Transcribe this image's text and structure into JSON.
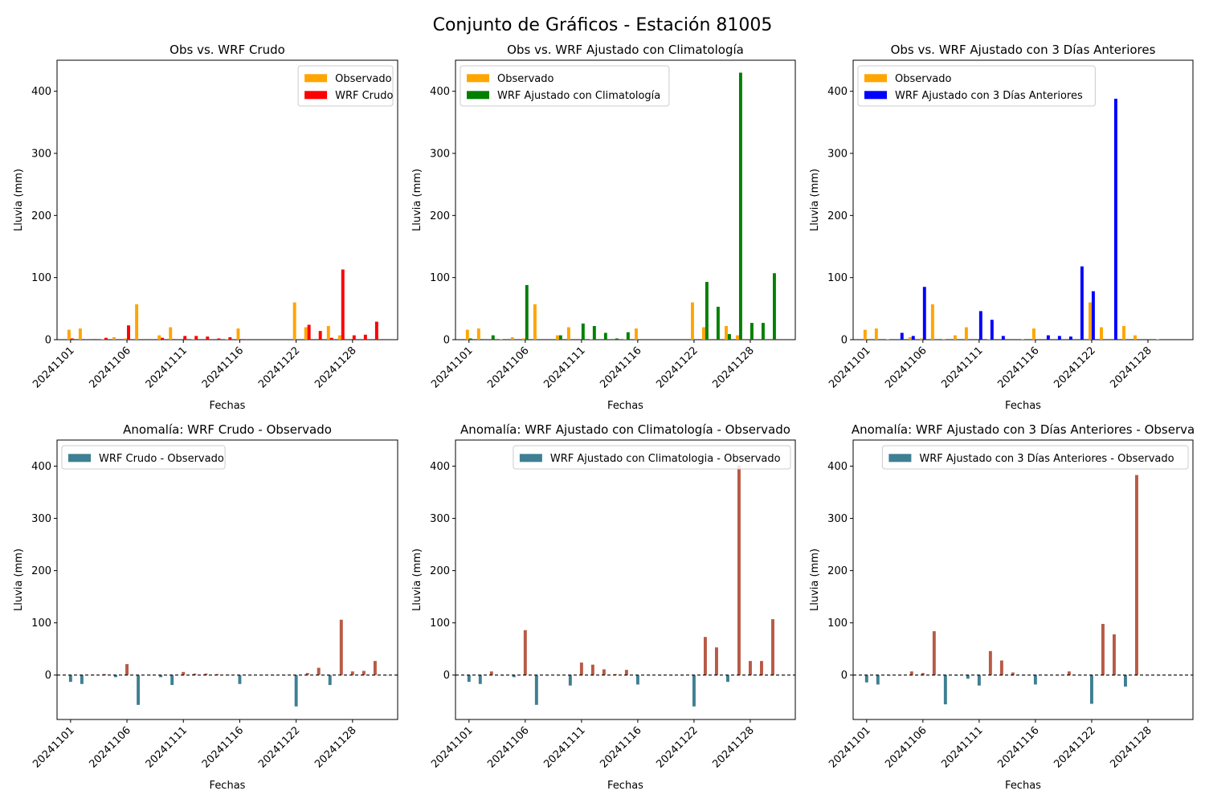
{
  "figure": {
    "suptitle": "Conjunto de Gráficos - Estación 81005"
  },
  "colors": {
    "observed": "#ffa500",
    "wrf_crudo": "#ff0000",
    "wrf_clim": "#008000",
    "wrf_3dias": "#0000ff",
    "anomaly_negative": "#3f7f93",
    "anomaly_positive": "#b85a45",
    "zero_line": "#000000"
  },
  "chart_data": [
    {
      "type": "bar",
      "title": "Obs vs. WRF Crudo",
      "xlabel": "Fechas",
      "ylabel": "Lluvia (mm)",
      "ylim": [
        0,
        450
      ],
      "yticks": [
        0,
        100,
        200,
        300,
        400
      ],
      "x_range": [
        0,
        29
      ],
      "legend_position": "top-right",
      "xtick_labels": [
        {
          "label": "20241101",
          "x": 1
        },
        {
          "label": "20241106",
          "x": 6
        },
        {
          "label": "20241111",
          "x": 11
        },
        {
          "label": "20241116",
          "x": 16
        },
        {
          "label": "20241122",
          "x": 21
        },
        {
          "label": "20241128",
          "x": 26
        }
      ],
      "series": [
        {
          "name": "Observado",
          "color_key": "observed",
          "x": [
            1,
            2,
            3,
            4,
            5,
            6,
            7,
            8,
            9,
            10,
            11,
            12,
            13,
            14,
            15,
            16,
            17,
            18,
            19,
            20,
            21,
            22,
            23,
            24,
            25,
            26,
            27,
            28,
            29
          ],
          "values": [
            16,
            18,
            0,
            1,
            4,
            2,
            57,
            0,
            7,
            20,
            0,
            1,
            0,
            0,
            1,
            18,
            0,
            0,
            0,
            0,
            60,
            20,
            0,
            22,
            7,
            0,
            0,
            0,
            0
          ]
        },
        {
          "name": "WRF Crudo",
          "color_key": "wrf_crudo",
          "x": [
            1,
            2,
            3,
            4,
            5,
            6,
            7,
            8,
            9,
            10,
            11,
            12,
            13,
            14,
            15,
            16,
            17,
            18,
            19,
            20,
            21,
            22,
            23,
            24,
            25,
            26,
            27,
            28,
            29
          ],
          "values": [
            2,
            1,
            1,
            3,
            0,
            23,
            0,
            0,
            3,
            1,
            6,
            6,
            5,
            2,
            4,
            1,
            0,
            0,
            0,
            0,
            0,
            24,
            14,
            3,
            113,
            7,
            8,
            29,
            0
          ]
        }
      ]
    },
    {
      "type": "bar",
      "title": "Obs vs. WRF Ajustado con Climatología",
      "xlabel": "Fechas",
      "ylabel": "Lluvia (mm)",
      "ylim": [
        0,
        450
      ],
      "yticks": [
        0,
        100,
        200,
        300,
        400
      ],
      "x_range": [
        0,
        29
      ],
      "legend_position": "top-left",
      "xtick_labels": [
        {
          "label": "20241101",
          "x": 1
        },
        {
          "label": "20241106",
          "x": 6
        },
        {
          "label": "20241111",
          "x": 11
        },
        {
          "label": "20241116",
          "x": 16
        },
        {
          "label": "20241122",
          "x": 21
        },
        {
          "label": "20241128",
          "x": 26
        }
      ],
      "series": [
        {
          "name": "Observado",
          "color_key": "observed",
          "x": [
            1,
            2,
            3,
            4,
            5,
            6,
            7,
            8,
            9,
            10,
            11,
            12,
            13,
            14,
            15,
            16,
            17,
            18,
            19,
            20,
            21,
            22,
            23,
            24,
            25,
            26,
            27,
            28,
            29
          ],
          "values": [
            16,
            18,
            0,
            1,
            4,
            2,
            57,
            0,
            7,
            20,
            0,
            1,
            0,
            0,
            1,
            18,
            0,
            0,
            0,
            0,
            60,
            20,
            0,
            22,
            7,
            0,
            0,
            0,
            0
          ]
        },
        {
          "name": "WRF Ajustado con Climatología",
          "color_key": "wrf_clim",
          "x": [
            1,
            2,
            3,
            4,
            5,
            6,
            7,
            8,
            9,
            10,
            11,
            12,
            13,
            14,
            15,
            16,
            17,
            18,
            19,
            20,
            21,
            22,
            23,
            24,
            25,
            26,
            27,
            28,
            29
          ],
          "values": [
            2,
            1,
            7,
            0,
            0,
            88,
            0,
            0,
            7,
            0,
            26,
            22,
            11,
            2,
            12,
            0,
            0,
            0,
            0,
            0,
            0,
            93,
            53,
            9,
            430,
            27,
            27,
            107,
            0
          ]
        }
      ]
    },
    {
      "type": "bar",
      "title": "Obs vs. WRF Ajustado con 3 Días Anteriores",
      "xlabel": "Fechas",
      "ylabel": "Lluvia (mm)",
      "ylim": [
        0,
        450
      ],
      "yticks": [
        0,
        100,
        200,
        300,
        400
      ],
      "x_range": [
        0,
        29
      ],
      "legend_position": "top-left",
      "xtick_labels": [
        {
          "label": "20241101",
          "x": 1
        },
        {
          "label": "20241106",
          "x": 6
        },
        {
          "label": "20241111",
          "x": 11
        },
        {
          "label": "20241116",
          "x": 16
        },
        {
          "label": "20241122",
          "x": 21
        },
        {
          "label": "20241128",
          "x": 26
        }
      ],
      "series": [
        {
          "name": "Observado",
          "color_key": "observed",
          "x": [
            1,
            2,
            3,
            4,
            5,
            6,
            7,
            8,
            9,
            10,
            11,
            12,
            13,
            14,
            15,
            16,
            17,
            18,
            19,
            20,
            21,
            22,
            23,
            24,
            25,
            26,
            27,
            28,
            29
          ],
          "values": [
            16,
            18,
            1,
            0,
            4,
            2,
            57,
            1,
            7,
            20,
            0,
            1,
            0,
            0,
            1,
            18,
            0,
            0,
            0,
            0,
            60,
            20,
            0,
            22,
            7,
            0,
            1,
            0,
            0
          ]
        },
        {
          "name": "WRF Ajustado con 3 Días Anteriores",
          "color_key": "wrf_3dias",
          "x": [
            1,
            2,
            3,
            4,
            5,
            6,
            7,
            8,
            9,
            10,
            11,
            12,
            13,
            14,
            15,
            16,
            17,
            18,
            19,
            20,
            21,
            22,
            23,
            24,
            25,
            26,
            27,
            28,
            29
          ],
          "values": [
            0,
            0,
            0,
            11,
            6,
            85,
            0,
            0,
            0,
            0,
            46,
            32,
            6,
            0,
            0,
            0,
            7,
            6,
            5,
            118,
            78,
            0,
            388,
            0,
            0,
            0,
            0,
            0,
            0
          ]
        }
      ]
    },
    {
      "type": "bar",
      "title": "Anomalía: WRF Crudo - Observado",
      "xlabel": "Fechas",
      "ylabel": "Lluvia (mm)",
      "ylim": [
        -85,
        450
      ],
      "yticks": [
        0,
        100,
        200,
        300,
        400
      ],
      "x_range": [
        0,
        29
      ],
      "legend_position": "top-left",
      "zero_line": true,
      "xtick_labels": [
        {
          "label": "20241101",
          "x": 1
        },
        {
          "label": "20241106",
          "x": 6
        },
        {
          "label": "20241111",
          "x": 11
        },
        {
          "label": "20241116",
          "x": 16
        },
        {
          "label": "20241122",
          "x": 21
        },
        {
          "label": "20241128",
          "x": 26
        }
      ],
      "series": [
        {
          "name": "WRF Crudo - Observado",
          "x": [
            1,
            2,
            3,
            4,
            5,
            6,
            7,
            8,
            9,
            10,
            11,
            12,
            13,
            14,
            15,
            16,
            17,
            18,
            19,
            20,
            21,
            22,
            23,
            24,
            25,
            26,
            27,
            28,
            29
          ],
          "values": [
            -13,
            -17,
            1,
            2,
            -4,
            21,
            -57,
            0,
            -4,
            -19,
            6,
            3,
            3,
            2,
            1,
            -17,
            0,
            0,
            0,
            0,
            -60,
            4,
            14,
            -19,
            106,
            7,
            8,
            27,
            0
          ]
        }
      ]
    },
    {
      "type": "bar",
      "title": "Anomalía: WRF Ajustado con Climatología - Observado",
      "xlabel": "Fechas",
      "ylabel": "Lluvia (mm)",
      "ylim": [
        -85,
        450
      ],
      "yticks": [
        0,
        100,
        200,
        300,
        400
      ],
      "x_range": [
        0,
        29
      ],
      "legend_position": "top-right",
      "zero_line": true,
      "xtick_labels": [
        {
          "label": "20241101",
          "x": 1
        },
        {
          "label": "20241106",
          "x": 6
        },
        {
          "label": "20241111",
          "x": 11
        },
        {
          "label": "20241116",
          "x": 16
        },
        {
          "label": "20241122",
          "x": 21
        },
        {
          "label": "20241128",
          "x": 26
        }
      ],
      "series": [
        {
          "name": "WRF Ajustado con Climatologia - Observado",
          "x": [
            1,
            2,
            3,
            4,
            5,
            6,
            7,
            8,
            9,
            10,
            11,
            12,
            13,
            14,
            15,
            16,
            17,
            18,
            19,
            20,
            21,
            22,
            23,
            24,
            25,
            26,
            27,
            28,
            29
          ],
          "values": [
            -13,
            -17,
            7,
            -1,
            -4,
            86,
            -57,
            0,
            0,
            -20,
            24,
            20,
            11,
            2,
            10,
            -18,
            0,
            0,
            0,
            0,
            -60,
            73,
            53,
            -13,
            402,
            27,
            27,
            107,
            0
          ]
        }
      ]
    },
    {
      "type": "bar",
      "title": "Anomalía: WRF Ajustado con 3 Días Anteriores - Observa",
      "xlabel": "Fechas",
      "ylabel": "Lluvia (mm)",
      "ylim": [
        -85,
        450
      ],
      "yticks": [
        0,
        100,
        200,
        300,
        400
      ],
      "x_range": [
        0,
        29
      ],
      "legend_position": "top-right",
      "zero_line": true,
      "xtick_labels": [
        {
          "label": "20241101",
          "x": 1
        },
        {
          "label": "20241106",
          "x": 6
        },
        {
          "label": "20241111",
          "x": 11
        },
        {
          "label": "20241116",
          "x": 16
        },
        {
          "label": "20241122",
          "x": 21
        },
        {
          "label": "20241128",
          "x": 26
        }
      ],
      "series": [
        {
          "name": "WRF Ajustado con 3 Días Anteriores - Observado",
          "x": [
            1,
            2,
            3,
            4,
            5,
            6,
            7,
            8,
            9,
            10,
            11,
            12,
            13,
            14,
            15,
            16,
            17,
            18,
            19,
            20,
            21,
            22,
            23,
            24,
            25,
            26,
            27,
            28,
            29
          ],
          "values": [
            -14,
            -18,
            -1,
            0,
            7,
            4,
            84,
            -56,
            -1,
            -7,
            -20,
            46,
            28,
            5,
            -1,
            -18,
            0,
            0,
            7,
            0,
            -55,
            98,
            78,
            -22,
            383,
            0,
            0,
            0,
            0
          ]
        }
      ]
    }
  ]
}
